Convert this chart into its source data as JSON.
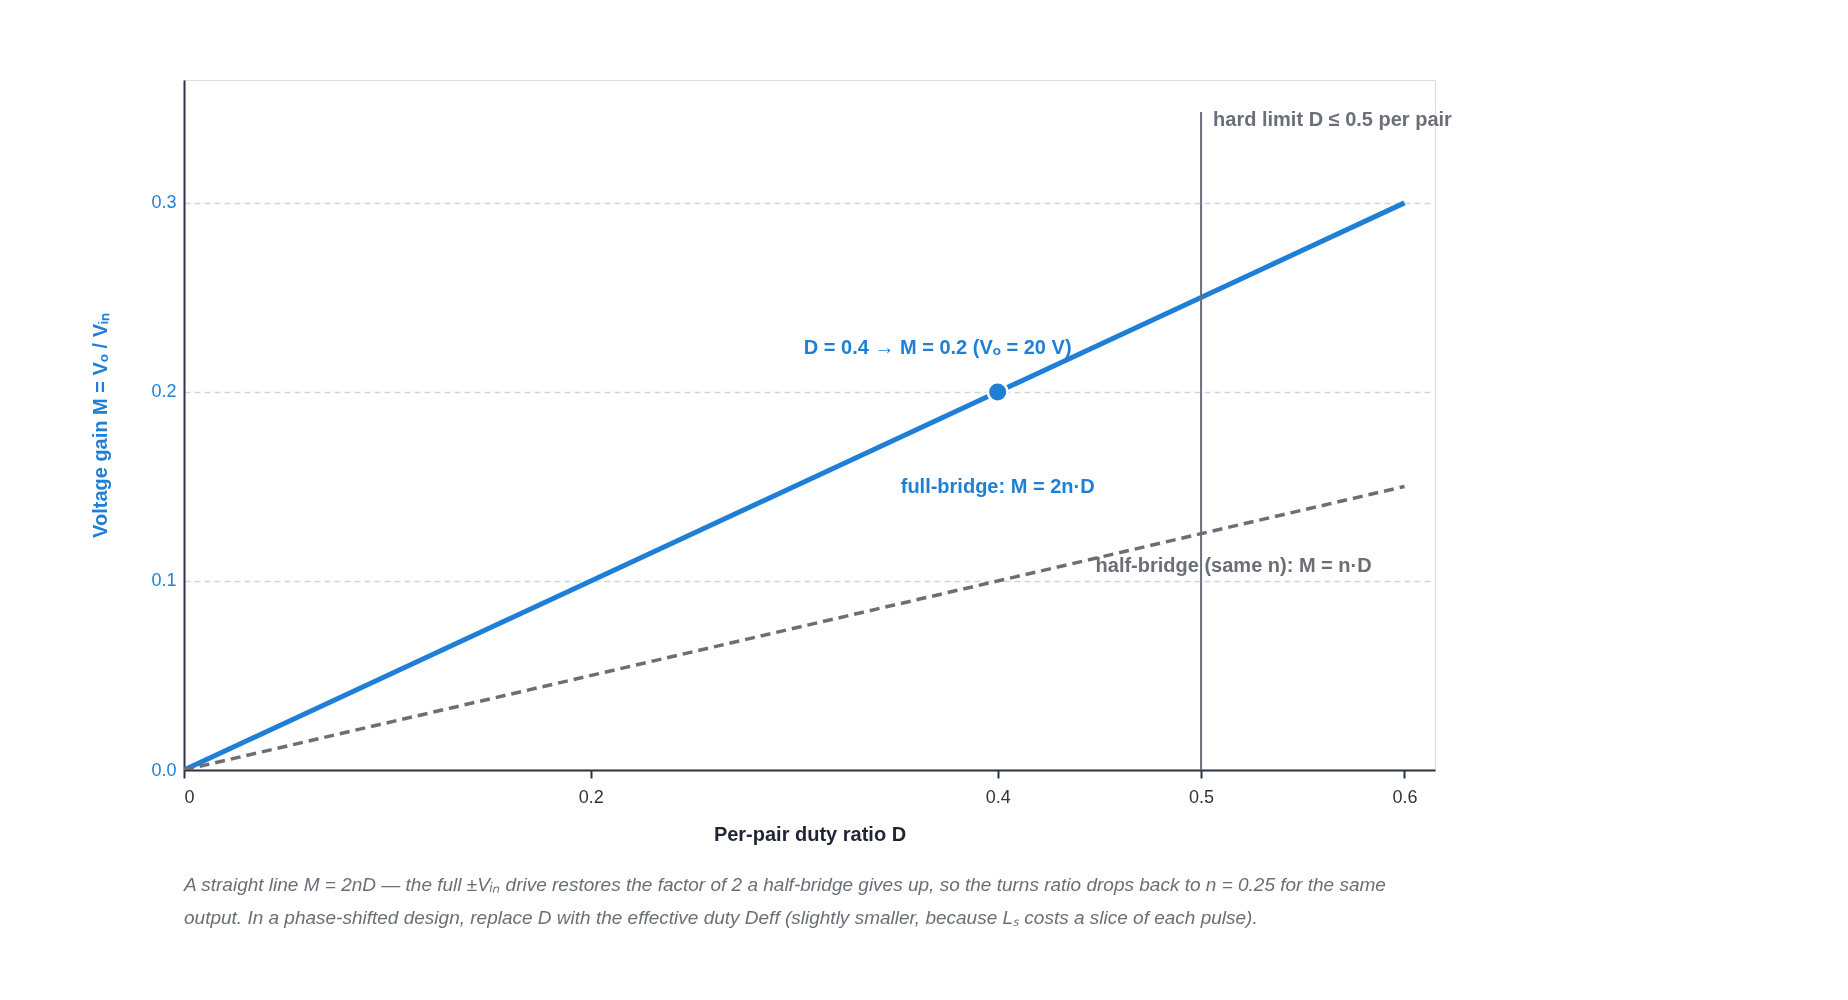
{
  "chart_data": {
    "type": "line",
    "xlabel": "Per-pair duty ratio D",
    "ylabel": "Voltage gain M = Vₒ / Vᵢₙ",
    "xlim": [
      0,
      0.615
    ],
    "xticks": [
      0,
      0.2,
      0.4,
      0.5,
      0.6
    ],
    "ylim": [
      0,
      0.365
    ],
    "yticks": [
      {
        "value": 0,
        "label": "0.0"
      },
      0.1,
      0.2,
      0.3
    ],
    "grid": "y",
    "legend": false,
    "series": [
      {
        "name": "full-bridge: M = 2n·D",
        "color": "#1f7fd6",
        "x": [
          0,
          0.6
        ],
        "values": [
          0,
          0.3
        ],
        "line_style": "solid"
      },
      {
        "name": "half-bridge (same n): M = n·D",
        "color": "#6b6e75",
        "x": [
          0,
          0.6
        ],
        "values": [
          0,
          0.15
        ],
        "line_style": "dashed"
      },
      {
        "type": "scatter",
        "color": "#1f7fd6",
        "x": [
          0.4
        ],
        "values": [
          0.2
        ],
        "marker": "circle"
      }
    ],
    "ref_lines": [
      {
        "axis": "x",
        "value": 0.5,
        "label": "hard limit D ≤ 0.5 per pair",
        "color": "#6b7078"
      }
    ],
    "annotations": [
      {
        "text": "D = 0.4 → M = 0.2 (Vₒ = 20 V)",
        "x": 0.4,
        "y": 0.2
      },
      "A straight line M = 2nD — the full ±Vᵢₙ drive restores the factor of 2 a half-bridge gives up, so the turns ratio drops back to n = 0.25 for the same output. In a phase-shifted design, replace D with the effective duty Deff (slightly smaller, because Lₛ costs a slice of each pulse)."
    ]
  }
}
